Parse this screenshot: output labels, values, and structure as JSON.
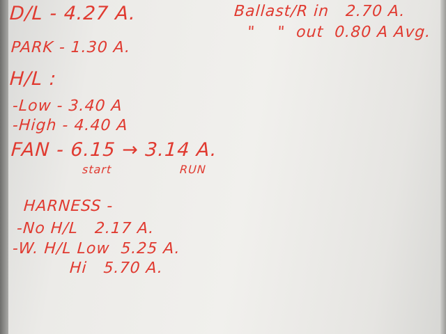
{
  "whiteboard": {
    "ink_color": "#e03a30",
    "lines": {
      "dl": "D/L - 4.27 A.",
      "park": "PARK - 1.30 A.",
      "hl_heading": "H/L :",
      "hl_low": "-Low - 3.40 A",
      "hl_high": "-High - 4.40 A",
      "fan": "FAN - 6.15 → 3.14 A.",
      "fan_start": "start",
      "fan_run": "RUN",
      "harness_heading": "HARNESS -",
      "harness_no_hl": "-No H/L   2.17 A.",
      "harness_w_hl_low": "-W. H/L Low  5.25 A.",
      "harness_w_hl_hi": "Hi   5.70 A.",
      "ballast_in": "Ballast/R in   2.70 A.",
      "ballast_out": "\"    \"  out  0.80 A Avg."
    }
  }
}
